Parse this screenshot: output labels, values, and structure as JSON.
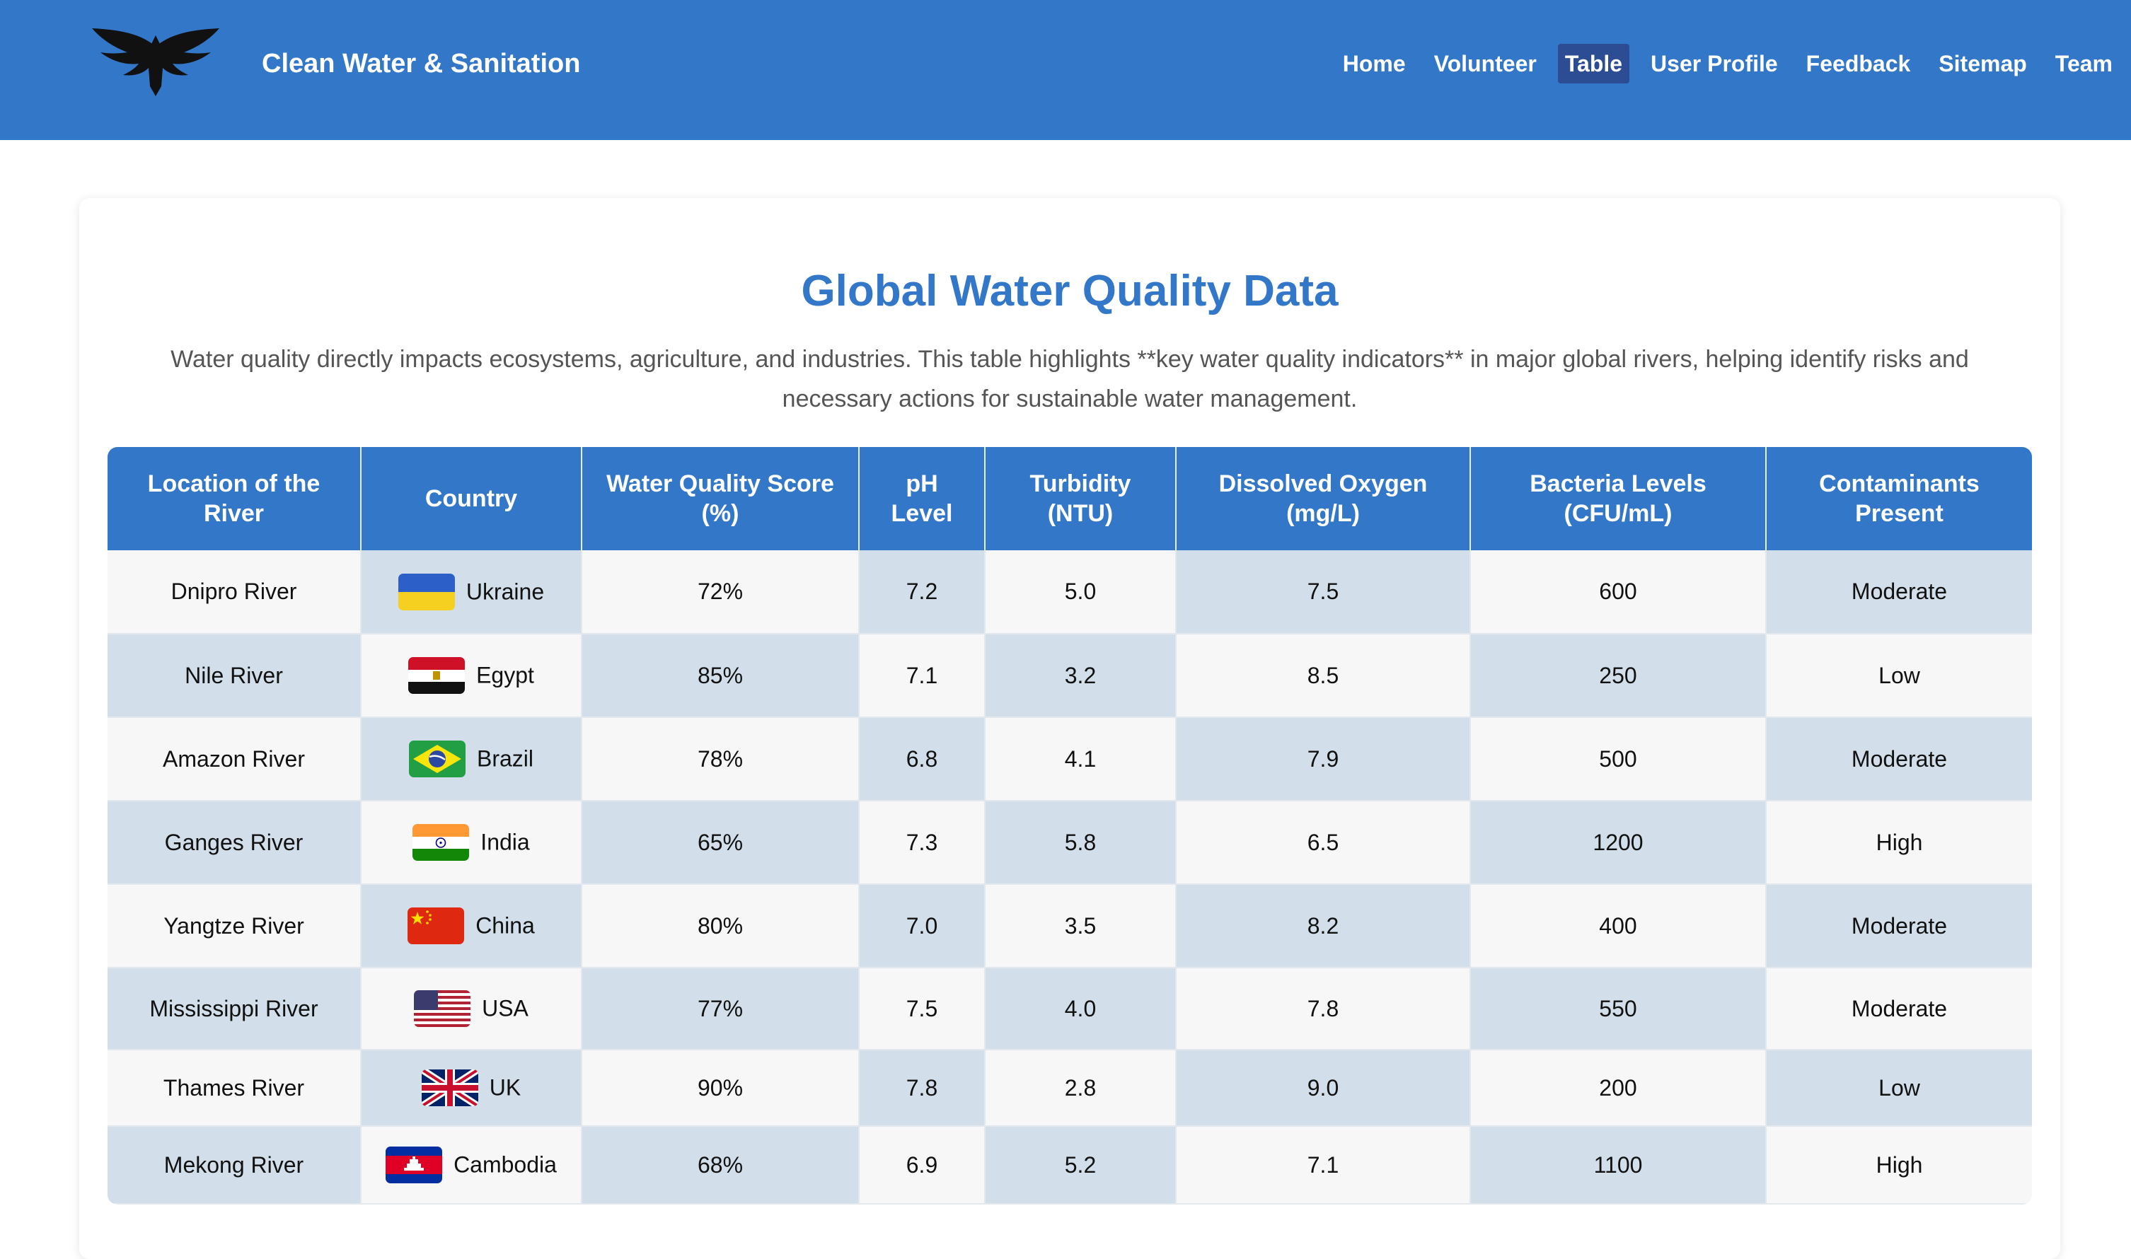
{
  "header": {
    "logo_icon": "eagle-logo-icon",
    "site_title": "Clean Water & Sanitation",
    "nav": [
      {
        "label": "Home",
        "active": false
      },
      {
        "label": "Volunteer",
        "active": false
      },
      {
        "label": "Table",
        "active": true
      },
      {
        "label": "User Profile",
        "active": false
      },
      {
        "label": "Feedback",
        "active": false
      },
      {
        "label": "Sitemap",
        "active": false
      },
      {
        "label": "Team",
        "active": false
      }
    ],
    "colors": {
      "background": "#3377c9",
      "active_nav": "#2c4c94"
    }
  },
  "main": {
    "title": "Global Water Quality Data",
    "description": "Water quality directly impacts ecosystems, agriculture, and industries. This table highlights **key water quality indicators** in major global rivers, helping identify risks and necessary actions for sustainable water management.",
    "table": {
      "headers": [
        "Location of the River",
        "Country",
        "Water Quality Score (%)",
        "pH Level",
        "Turbidity (NTU)",
        "Dissolved Oxygen (mg/L)",
        "Bacteria Levels (CFU/mL)",
        "Contaminants Present"
      ],
      "rows": [
        {
          "river": "Dnipro River",
          "country": "Ukraine",
          "flag": "ukraine-flag-icon",
          "score": "72%",
          "ph": "7.2",
          "turbidity": "5.0",
          "oxygen": "7.5",
          "bacteria": "600",
          "contaminants": "Moderate"
        },
        {
          "river": "Nile River",
          "country": "Egypt",
          "flag": "egypt-flag-icon",
          "score": "85%",
          "ph": "7.1",
          "turbidity": "3.2",
          "oxygen": "8.5",
          "bacteria": "250",
          "contaminants": "Low"
        },
        {
          "river": "Amazon River",
          "country": "Brazil",
          "flag": "brazil-flag-icon",
          "score": "78%",
          "ph": "6.8",
          "turbidity": "4.1",
          "oxygen": "7.9",
          "bacteria": "500",
          "contaminants": "Moderate"
        },
        {
          "river": "Ganges River",
          "country": "India",
          "flag": "india-flag-icon",
          "score": "65%",
          "ph": "7.3",
          "turbidity": "5.8",
          "oxygen": "6.5",
          "bacteria": "1200",
          "contaminants": "High"
        },
        {
          "river": "Yangtze River",
          "country": "China",
          "flag": "china-flag-icon",
          "score": "80%",
          "ph": "7.0",
          "turbidity": "3.5",
          "oxygen": "8.2",
          "bacteria": "400",
          "contaminants": "Moderate"
        },
        {
          "river": "Mississippi River",
          "country": "USA",
          "flag": "usa-flag-icon",
          "score": "77%",
          "ph": "7.5",
          "turbidity": "4.0",
          "oxygen": "7.8",
          "bacteria": "550",
          "contaminants": "Moderate"
        },
        {
          "river": "Thames River",
          "country": "UK",
          "flag": "uk-flag-icon",
          "score": "90%",
          "ph": "7.8",
          "turbidity": "2.8",
          "oxygen": "9.0",
          "bacteria": "200",
          "contaminants": "Low"
        },
        {
          "river": "Mekong River",
          "country": "Cambodia",
          "flag": "cambodia-flag-icon",
          "score": "68%",
          "ph": "6.9",
          "turbidity": "5.2",
          "oxygen": "7.1",
          "bacteria": "1100",
          "contaminants": "High"
        }
      ]
    },
    "colors": {
      "title": "#3377c9",
      "table_header": "#3377c9",
      "stripe_light": "#f7f7f7",
      "stripe_blue": "#d2dfea"
    }
  }
}
